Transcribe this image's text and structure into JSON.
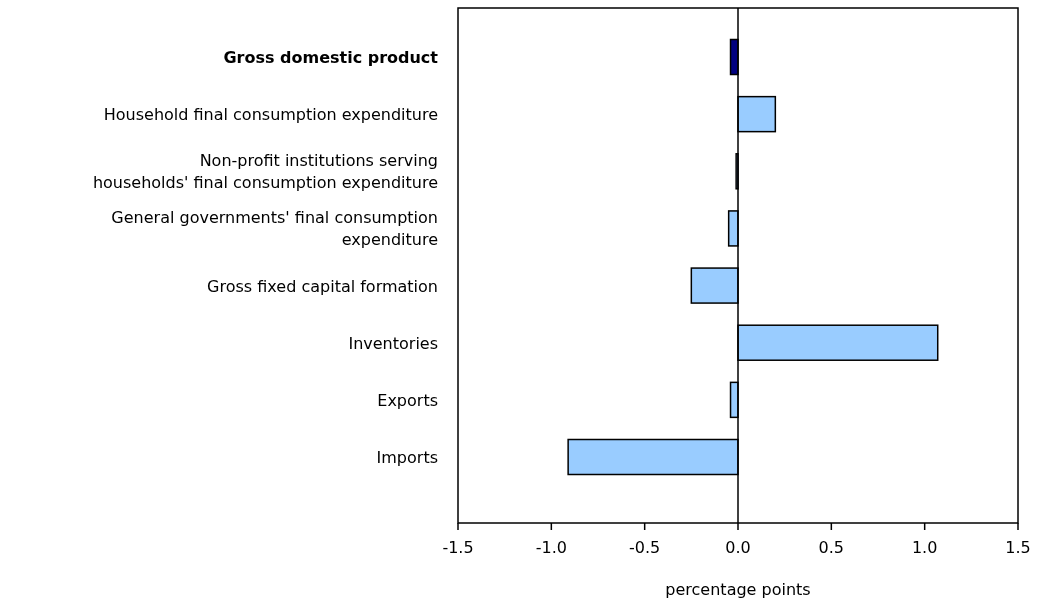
{
  "chart_data": {
    "type": "bar",
    "orientation": "horizontal",
    "xlabel": "percentage points",
    "categories": [
      "Gross domestic product",
      "Household final consumption expenditure",
      "Non-profit institutions serving households' final consumption expenditure",
      "General governments' final consumption expenditure",
      "Gross fixed capital formation",
      "Inventories",
      "Exports",
      "Imports"
    ],
    "values": [
      -0.04,
      0.2,
      -0.01,
      -0.05,
      -0.25,
      1.07,
      -0.04,
      -0.91
    ],
    "colors": [
      "#000080",
      "#99ccff",
      "#99ccff",
      "#99ccff",
      "#99ccff",
      "#99ccff",
      "#99ccff",
      "#99ccff"
    ],
    "xlim": [
      -1.5,
      1.5
    ],
    "xticks": [
      {
        "value": -1.5,
        "label": "-1.5"
      },
      {
        "value": -1,
        "label": "-1.0"
      },
      {
        "value": -0.5,
        "label": "-0.5"
      },
      {
        "value": 0,
        "label": "0.0"
      },
      {
        "value": 0.5,
        "label": "0.5"
      },
      {
        "value": 1,
        "label": "1.0"
      },
      {
        "value": 1.5,
        "label": "1.5"
      }
    ]
  }
}
